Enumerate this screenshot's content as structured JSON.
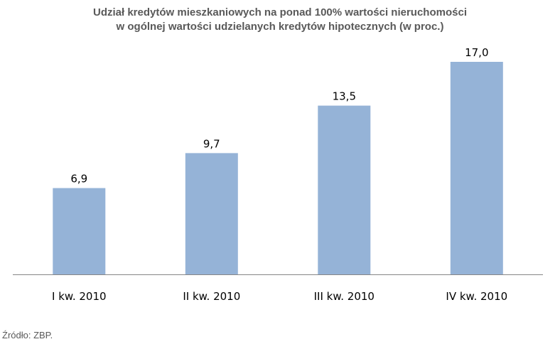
{
  "chart_data": {
    "type": "bar",
    "title_lines": [
      "Udział kredytów mieszkaniowych na ponad 100% wartości nieruchomości",
      "w ogólnej wartości udzielanych kredytów hipotecznych (w proc.)"
    ],
    "categories": [
      "I kw. 2010",
      "II kw. 2010",
      "III kw. 2010",
      "IV kw. 2010"
    ],
    "values": [
      6.9,
      9.7,
      13.5,
      17.0
    ],
    "data_labels": [
      "6,9",
      "9,7",
      "13,5",
      "17,0"
    ],
    "xlabel": "",
    "ylabel": "",
    "ylim": [
      0,
      17.0
    ],
    "grid": false,
    "legend": "none",
    "bar_color": "#95b3d7",
    "axis_color": "#868686"
  },
  "source_note": "Źródło: ZBP."
}
